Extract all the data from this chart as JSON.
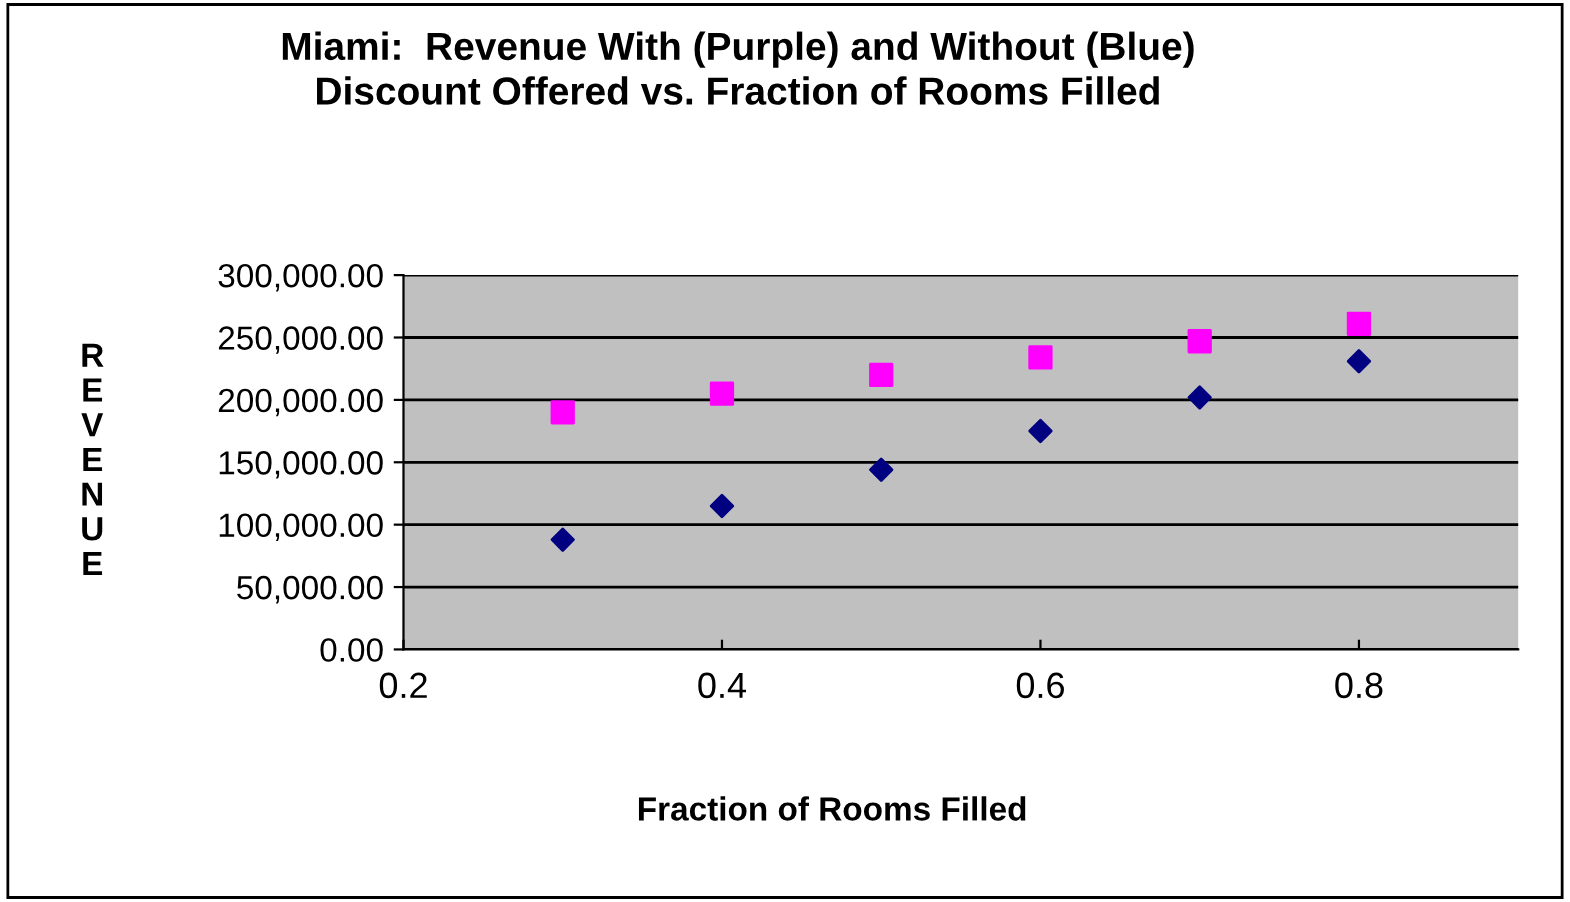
{
  "chart_data": {
    "type": "scatter",
    "title": "Miami:  Revenue With (Purple) and Without (Blue)\nDiscount Offered vs. Fraction of Rooms Filled",
    "xlabel": "Fraction of Rooms Filled",
    "ylabel": "REVENUE",
    "x": [
      0.3,
      0.4,
      0.5,
      0.6,
      0.7,
      0.8
    ],
    "series": [
      {
        "color": "#ff00ff",
        "marker": "square",
        "values": [
          190000,
          205000,
          220000,
          234000,
          247000,
          261000
        ]
      },
      {
        "color": "#000080",
        "marker": "diamond",
        "values": [
          88000,
          115000,
          144000,
          175000,
          202000,
          231000
        ]
      }
    ],
    "xlim": [
      0.2,
      0.9
    ],
    "xticks": [
      0.2,
      0.4,
      0.6,
      0.8
    ],
    "ylim": [
      0,
      300000
    ],
    "yticks": [
      {
        "value": 0,
        "label": "0.00"
      },
      {
        "value": 50000,
        "label": "50,000.00"
      },
      {
        "value": 100000,
        "label": "100,000.00"
      },
      {
        "value": 150000,
        "label": "150,000.00"
      },
      {
        "value": 200000,
        "label": "200,000.00"
      },
      {
        "value": 250000,
        "label": "250,000.00"
      },
      {
        "value": 300000,
        "label": "300,000.00"
      }
    ],
    "grid": "y",
    "legend": false
  }
}
